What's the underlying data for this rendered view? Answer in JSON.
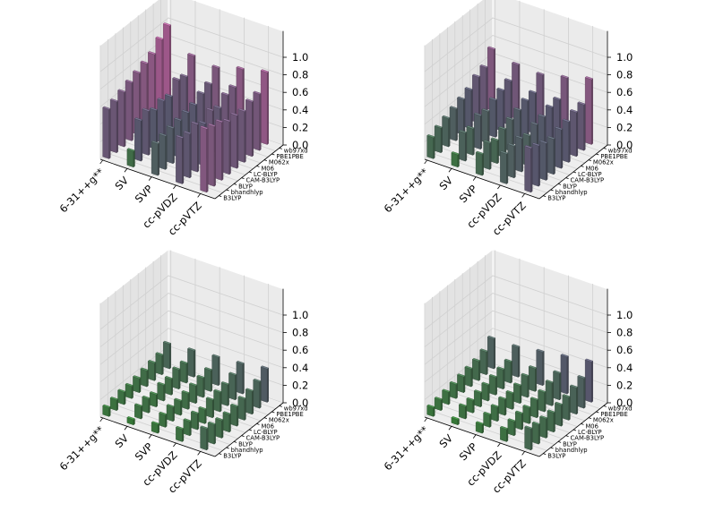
{
  "chart_data": [
    {
      "type": "bar3d",
      "panel": "top-left",
      "x_categories": [
        "6-31++g**",
        "SV",
        "SVP",
        "cc-pVDZ",
        "cc-pVTZ"
      ],
      "y_categories": [
        "B3LYP",
        "bhandhlyp",
        "BLYP",
        "CAM-B3LYP",
        "LC-BLYP",
        "M06",
        "M062x",
        "PBE1PBE",
        "wb97xd"
      ],
      "zlim": [
        0,
        1.0
      ],
      "z_ticks": [
        "0.0",
        "0.2",
        "0.4",
        "0.6",
        "0.8",
        "1.0"
      ],
      "values": [
        [
          0.56,
          0.58,
          0.62,
          0.66,
          0.7,
          0.74,
          0.78,
          0.88,
          0.97
        ],
        [
          0.18,
          0.46,
          0.5,
          0.44,
          0.48,
          0.46,
          0.58,
          0.55,
          0.72
        ],
        [
          0.36,
          0.38,
          0.4,
          0.42,
          0.44,
          0.46,
          0.52,
          0.56,
          0.68
        ],
        [
          0.52,
          0.5,
          0.54,
          0.48,
          0.56,
          0.52,
          0.6,
          0.62,
          0.76
        ],
        [
          0.72,
          0.68,
          0.66,
          0.6,
          0.6,
          0.58,
          0.62,
          0.64,
          0.82
        ]
      ]
    },
    {
      "type": "bar3d",
      "panel": "top-right",
      "x_categories": [
        "6-31++g**",
        "SV",
        "SVP",
        "cc-pVDZ",
        "cc-pVTZ"
      ],
      "y_categories": [
        "B3LYP",
        "bhandhlyp",
        "BLYP",
        "CAM-B3LYP",
        "LC-BLYP",
        "M06",
        "M062x",
        "PBE1PBE",
        "wb97xd"
      ],
      "zlim": [
        0,
        1.0
      ],
      "z_ticks": [
        "0.0",
        "0.2",
        "0.4",
        "0.6",
        "0.8",
        "1.0"
      ],
      "values": [
        [
          0.24,
          0.28,
          0.32,
          0.36,
          0.4,
          0.44,
          0.52,
          0.56,
          0.7
        ],
        [
          0.14,
          0.32,
          0.3,
          0.38,
          0.36,
          0.42,
          0.46,
          0.5,
          0.62
        ],
        [
          0.24,
          0.3,
          0.26,
          0.32,
          0.36,
          0.4,
          0.44,
          0.46,
          0.6
        ],
        [
          0.34,
          0.36,
          0.38,
          0.34,
          0.4,
          0.42,
          0.46,
          0.48,
          0.66
        ],
        [
          0.5,
          0.46,
          0.42,
          0.4,
          0.44,
          0.46,
          0.5,
          0.52,
          0.74
        ]
      ]
    },
    {
      "type": "bar3d",
      "panel": "bottom-left",
      "x_categories": [
        "6-31++g**",
        "SV",
        "SVP",
        "cc-pVDZ",
        "cc-pVTZ"
      ],
      "y_categories": [
        "B3LYP",
        "bhandhlyp",
        "BLYP",
        "CAM-B3LYP",
        "LC-BLYP",
        "M06",
        "M062x",
        "PBE1PBE",
        "wb97xd"
      ],
      "zlim": [
        0,
        1.0
      ],
      "z_ticks": [
        "0.0",
        "0.2",
        "0.4",
        "0.6",
        "0.8",
        "1.0"
      ],
      "values": [
        [
          0.1,
          0.12,
          0.14,
          0.14,
          0.16,
          0.18,
          0.2,
          0.22,
          0.28
        ],
        [
          0.06,
          0.14,
          0.16,
          0.14,
          0.18,
          0.18,
          0.22,
          0.22,
          0.3
        ],
        [
          0.1,
          0.14,
          0.16,
          0.16,
          0.18,
          0.2,
          0.22,
          0.24,
          0.32
        ],
        [
          0.14,
          0.16,
          0.18,
          0.16,
          0.2,
          0.22,
          0.24,
          0.28,
          0.34
        ],
        [
          0.24,
          0.22,
          0.2,
          0.2,
          0.22,
          0.24,
          0.26,
          0.3,
          0.38
        ]
      ]
    },
    {
      "type": "bar3d",
      "panel": "bottom-right",
      "x_categories": [
        "6-31++g**",
        "SV",
        "SVP",
        "cc-pVDZ",
        "cc-pVTZ"
      ],
      "y_categories": [
        "B3LYP",
        "bhandhlyp",
        "BLYP",
        "CAM-B3LYP",
        "LC-BLYP",
        "M06",
        "M062x",
        "PBE1PBE",
        "wb97xd"
      ],
      "zlim": [
        0,
        1.0
      ],
      "z_ticks": [
        "0.0",
        "0.2",
        "0.4",
        "0.6",
        "0.8",
        "1.0"
      ],
      "values": [
        [
          0.1,
          0.12,
          0.14,
          0.16,
          0.18,
          0.2,
          0.22,
          0.26,
          0.34
        ],
        [
          0.06,
          0.14,
          0.14,
          0.16,
          0.18,
          0.2,
          0.22,
          0.24,
          0.34
        ],
        [
          0.1,
          0.14,
          0.16,
          0.18,
          0.18,
          0.2,
          0.24,
          0.26,
          0.38
        ],
        [
          0.14,
          0.16,
          0.18,
          0.18,
          0.2,
          0.22,
          0.26,
          0.3,
          0.42
        ],
        [
          0.24,
          0.22,
          0.22,
          0.22,
          0.24,
          0.26,
          0.3,
          0.34,
          0.46
        ]
      ]
    }
  ],
  "colors": {
    "low": "#3f9e3c",
    "mid": "#6e6e8a",
    "high": "#c96fb0",
    "pane": "#ebebeb"
  }
}
